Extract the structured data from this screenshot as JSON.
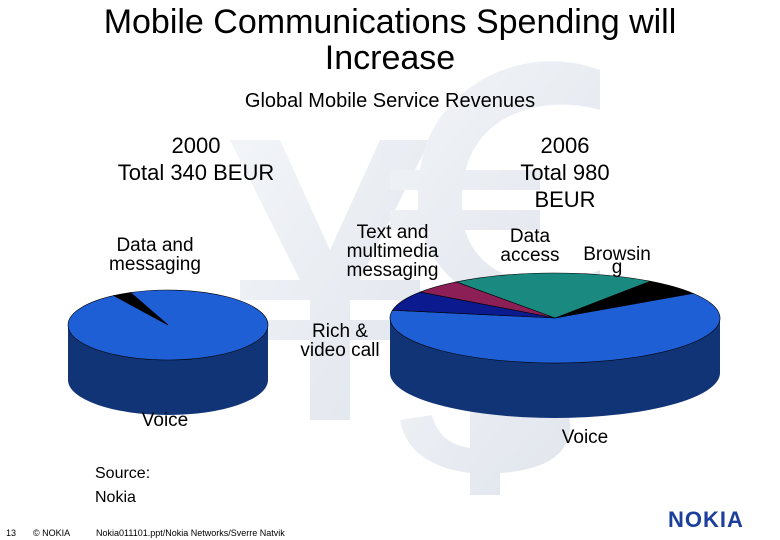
{
  "slide": {
    "title_line1": "Mobile Communications Spending will",
    "title_line2": "Increase",
    "subtitle": "Global Mobile Service Revenues",
    "source_line1": "Source:",
    "source_line2": "Nokia",
    "footer_page": "13",
    "footer_copyright": "© NOKIA",
    "footer_file": "Nokia011101.ppt/Nokia Networks/Sverre Natvik",
    "logo_text": "NOKIA",
    "brand_color": "#1c3f9c"
  },
  "chart_data": [
    {
      "type": "pie",
      "title_line1": "2000",
      "title_line2": "Total 340 BEUR",
      "slices": [
        {
          "label": "Voice",
          "value": 97,
          "color": "#1f5fd6"
        },
        {
          "label": "Data and messaging",
          "value": 3,
          "color": "#000000"
        }
      ]
    },
    {
      "type": "pie",
      "title_line1": "2006",
      "title_line2": "Total 980",
      "title_line3": "BEUR",
      "slices": [
        {
          "label": "Voice",
          "value": 62,
          "color": "#1f5fd6"
        },
        {
          "label": "Rich & video call",
          "value": 6,
          "color": "#000000"
        },
        {
          "label": "Text and multimedia messaging",
          "value": 20,
          "color": "#1a8a80"
        },
        {
          "label": "Data access",
          "value": 5,
          "color": "#8c1f55"
        },
        {
          "label": "Browsing",
          "value": 7,
          "color": "#0b1a8f"
        }
      ],
      "label_texts": {
        "voice": "Voice",
        "rich_line1": "Rich &",
        "rich_line2": "video call",
        "text_line1": "Text and",
        "text_line2": "multimedia",
        "text_line3": "messaging",
        "data_line1": "Data",
        "data_line2": "access",
        "browsing_line1": "Browsin",
        "browsing_line2": "g"
      }
    }
  ],
  "labels_2000": {
    "data_line1": "Data and",
    "data_line2": "messaging",
    "voice": "Voice"
  }
}
